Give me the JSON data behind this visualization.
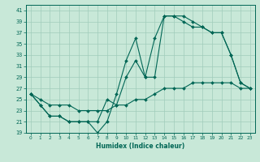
{
  "xlabel": "Humidex (Indice chaleur)",
  "xlim": [
    -0.5,
    23.5
  ],
  "ylim": [
    19,
    42
  ],
  "yticks": [
    19,
    21,
    23,
    25,
    27,
    29,
    31,
    33,
    35,
    37,
    39,
    41
  ],
  "xticks": [
    0,
    1,
    2,
    3,
    4,
    5,
    6,
    7,
    8,
    9,
    10,
    11,
    12,
    13,
    14,
    15,
    16,
    17,
    18,
    19,
    20,
    21,
    22,
    23
  ],
  "background_color": "#c8e8d8",
  "grid_color": "#a0ccbb",
  "line_color": "#006655",
  "line1_x": [
    0,
    1,
    2,
    3,
    4,
    5,
    6,
    7,
    8,
    9,
    10,
    11,
    12,
    13,
    14,
    15,
    16,
    17,
    18,
    19,
    20,
    21,
    22,
    23
  ],
  "line1_y": [
    26,
    24,
    22,
    22,
    21,
    21,
    21,
    19,
    21,
    26,
    32,
    36,
    29,
    36,
    40,
    40,
    39,
    38,
    38,
    37,
    37,
    33,
    28,
    27
  ],
  "line2_x": [
    0,
    1,
    2,
    3,
    4,
    5,
    6,
    7,
    8,
    9,
    10,
    11,
    12,
    13,
    14,
    15,
    16,
    17,
    18,
    19,
    20,
    21,
    22,
    23
  ],
  "line2_y": [
    26,
    24,
    22,
    22,
    21,
    21,
    21,
    21,
    25,
    24,
    29,
    32,
    29,
    29,
    40,
    40,
    40,
    39,
    38,
    37,
    37,
    33,
    28,
    27
  ],
  "line3_x": [
    0,
    1,
    2,
    3,
    4,
    5,
    6,
    7,
    8,
    9,
    10,
    11,
    12,
    13,
    14,
    15,
    16,
    17,
    18,
    19,
    20,
    21,
    22,
    23
  ],
  "line3_y": [
    26,
    25,
    24,
    24,
    24,
    23,
    23,
    23,
    23,
    24,
    24,
    25,
    25,
    26,
    27,
    27,
    27,
    28,
    28,
    28,
    28,
    28,
    27,
    27
  ]
}
